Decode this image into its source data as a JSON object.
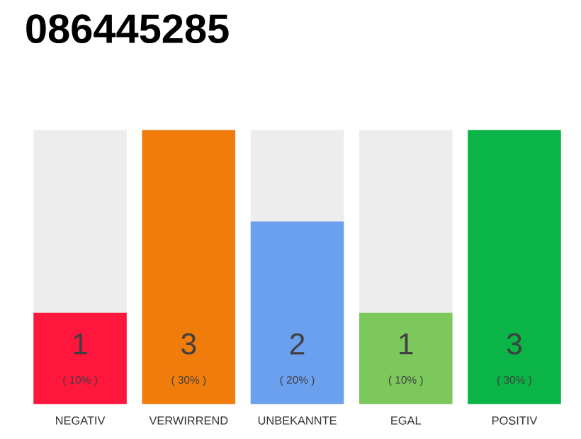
{
  "chart_data": {
    "type": "bar",
    "title": "086445285",
    "categories": [
      "NEGATIV",
      "VERWIRREND",
      "UNBEKANNTE",
      "EGAL",
      "POSITIV"
    ],
    "values": [
      10,
      30,
      20,
      10,
      30
    ],
    "colors": [
      "#ff163c",
      "#f07c0c",
      "#6aa0ee",
      "#7cc85c",
      "#0ab446"
    ],
    "value_labels": [
      "( 10% )",
      "( 30% )",
      "( 20% )",
      "( 10% )",
      "( 30% )"
    ],
    "annotations": [
      "1",
      "3",
      "2",
      "1",
      "3"
    ]
  }
}
